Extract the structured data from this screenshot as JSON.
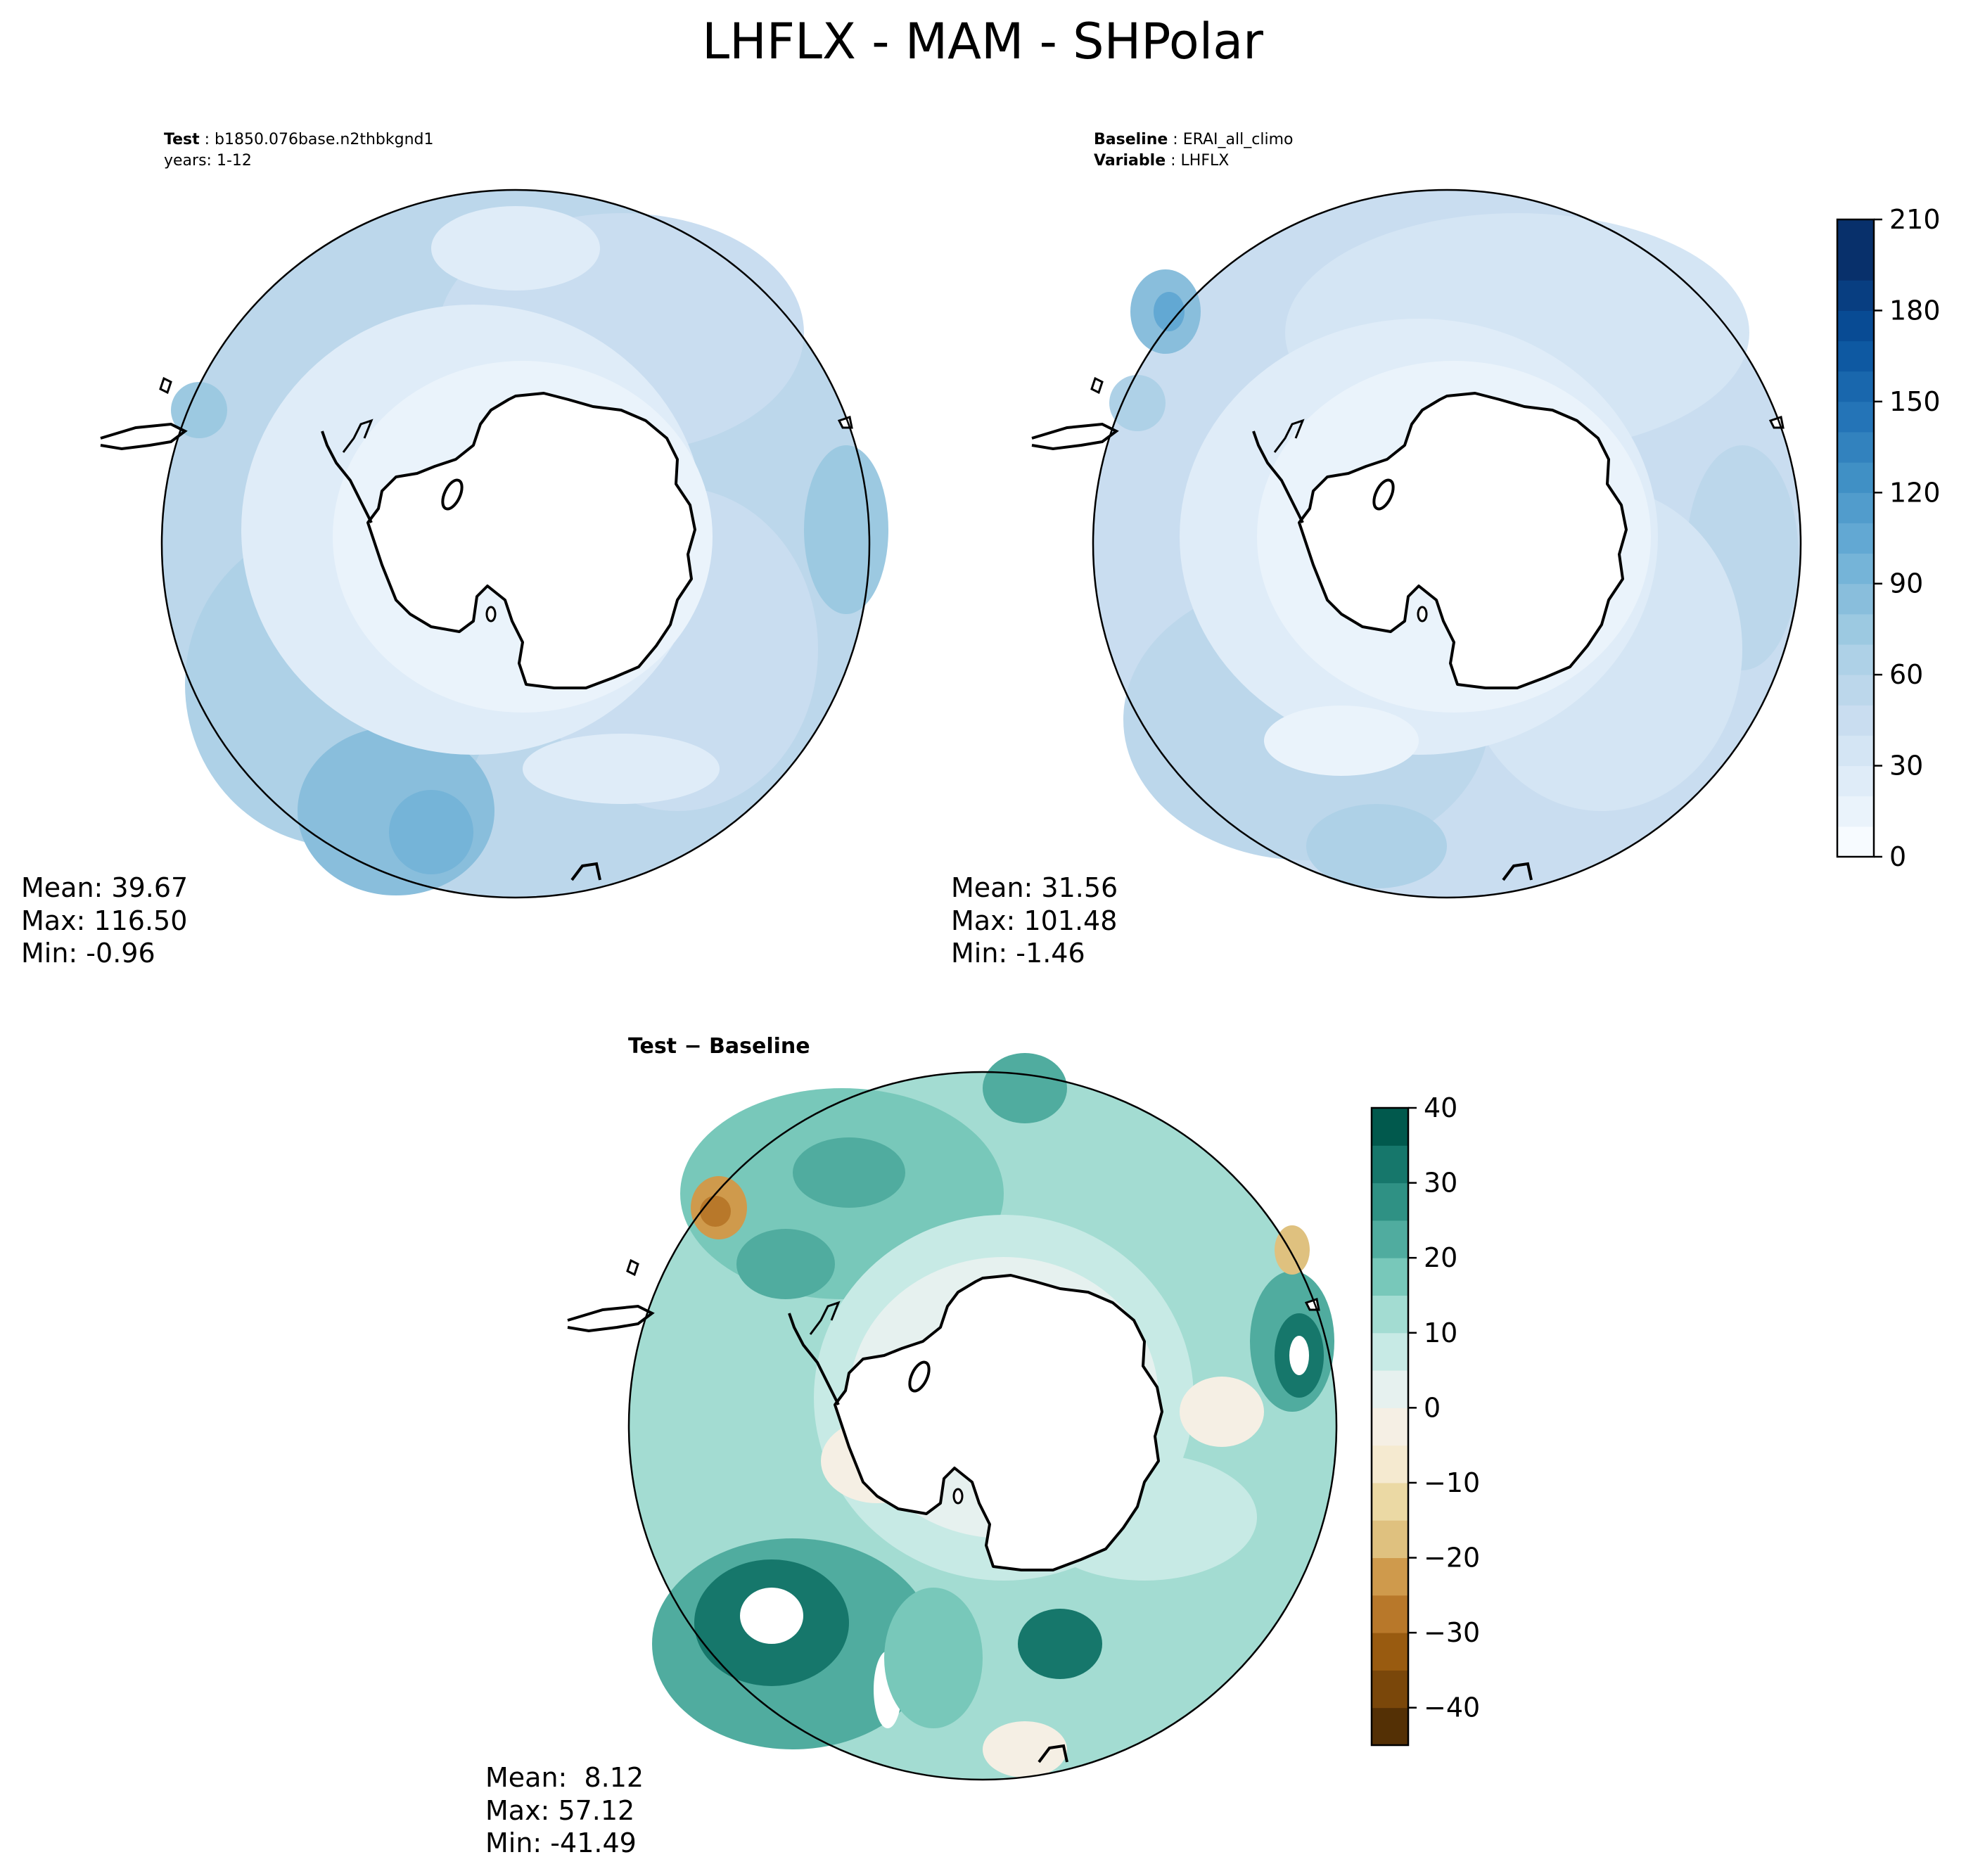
{
  "figure": {
    "title": "LHFLX - MAM - SHPolar"
  },
  "test_panel": {
    "label_bold": "Test",
    "label_value": "b1850.076base.n2thbkgnd1",
    "years_line": "years: 1-12",
    "stats": [
      "Mean: 39.67",
      "Max: 116.50",
      "Min: -0.96"
    ]
  },
  "baseline_panel": {
    "label_bold": "Baseline",
    "label_value": "ERAI_all_climo",
    "variable_bold": "Variable",
    "variable_value": "LHFLX",
    "stats": [
      "Mean: 31.56",
      "Max: 101.48",
      "Min: -1.46"
    ]
  },
  "diff_panel": {
    "title": "Test − Baseline",
    "stats": [
      "Mean:  8.12",
      "Max: 57.12",
      "Min: -41.49"
    ]
  },
  "colorbars": {
    "main": {
      "levels": [
        0,
        10,
        20,
        30,
        40,
        50,
        60,
        70,
        80,
        90,
        100,
        110,
        120,
        130,
        140,
        150,
        160,
        170,
        180,
        190,
        200,
        210
      ],
      "tick_labels": [
        "0",
        "30",
        "60",
        "90",
        "120",
        "150",
        "180",
        "210"
      ],
      "colors": [
        "#f7fbff",
        "#eaf3fb",
        "#dfecf8",
        "#d4e5f4",
        "#c9ddf0",
        "#bcd7eb",
        "#aed1e7",
        "#9cc9e1",
        "#89bedc",
        "#75b4d8",
        "#62a8d3",
        "#519ccc",
        "#4090c5",
        "#3282be",
        "#2474b7",
        "#1967ad",
        "#0e59a2",
        "#084b94",
        "#083e81",
        "#08306b",
        "#08306b"
      ]
    },
    "diff": {
      "levels": [
        -45,
        -40,
        -35,
        -30,
        -25,
        -20,
        -15,
        -10,
        -5,
        0,
        5,
        10,
        15,
        20,
        25,
        30,
        35,
        40
      ],
      "tick_labels": [
        "−40",
        "−30",
        "−20",
        "−10",
        "0",
        "10",
        "20",
        "30",
        "40"
      ],
      "colors": [
        "#543005",
        "#7a470a",
        "#995b10",
        "#b8782a",
        "#cf9a4c",
        "#dfc17f",
        "#ebd9a4",
        "#f5ead0",
        "#f5efe4",
        "#e6f1ef",
        "#c7eae5",
        "#a3dcd2",
        "#78c8ba",
        "#50ac9f",
        "#2f9184",
        "#16776b",
        "#01594d"
      ]
    }
  },
  "chart_data": [
    {
      "type": "heatmap",
      "title": "Test",
      "projection": "south polar stereographic",
      "variable": "LHFLX",
      "case": "b1850.076base.n2thbkgnd1",
      "years": "1-12",
      "stats": {
        "mean": 39.67,
        "max": 116.5,
        "min": -0.96
      },
      "colorbar_range": [
        0,
        210
      ],
      "colorbar_ticks": [
        0,
        30,
        60,
        90,
        120,
        150,
        180,
        210
      ]
    },
    {
      "type": "heatmap",
      "title": "Baseline",
      "projection": "south polar stereographic",
      "variable": "LHFLX",
      "case": "ERAI_all_climo",
      "stats": {
        "mean": 31.56,
        "max": 101.48,
        "min": -1.46
      },
      "colorbar_range": [
        0,
        210
      ],
      "colorbar_ticks": [
        0,
        30,
        60,
        90,
        120,
        150,
        180,
        210
      ]
    },
    {
      "type": "heatmap",
      "title": "Test − Baseline",
      "projection": "south polar stereographic",
      "variable": "LHFLX",
      "stats": {
        "mean": 8.12,
        "max": 57.12,
        "min": -41.49
      },
      "colorbar_range": [
        -45,
        40
      ],
      "colorbar_ticks": [
        -40,
        -30,
        -20,
        -10,
        0,
        10,
        20,
        30,
        40
      ]
    }
  ]
}
